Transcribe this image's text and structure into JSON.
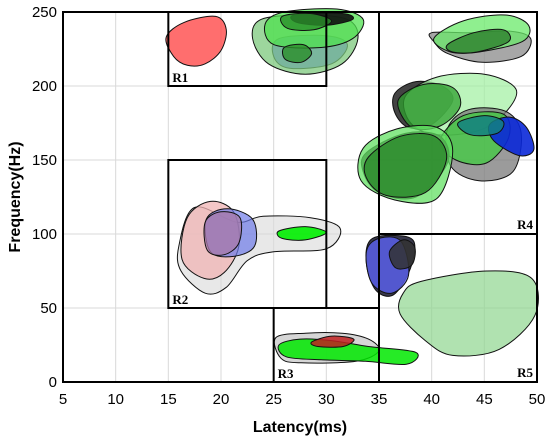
{
  "chart_data": {
    "type": "area",
    "title": "",
    "xlabel": "Latency(ms)",
    "ylabel": "Frequency(Hz)",
    "xlim": [
      5,
      50
    ],
    "ylim": [
      0,
      250
    ],
    "x_ticks": [
      5,
      10,
      15,
      20,
      25,
      30,
      35,
      40,
      45,
      50
    ],
    "y_ticks": [
      0,
      50,
      100,
      150,
      200,
      250
    ],
    "grid": true,
    "regions": [
      {
        "label": "R1",
        "x": [
          15,
          30
        ],
        "y": [
          200,
          250
        ]
      },
      {
        "label": "R2",
        "x": [
          15,
          30
        ],
        "y": [
          50,
          150
        ]
      },
      {
        "label": "R3",
        "x": [
          25,
          35
        ],
        "y": [
          0,
          50
        ]
      },
      {
        "label": "R4",
        "x": [
          35,
          50
        ],
        "y": [
          100,
          250
        ]
      },
      {
        "label": "R5",
        "x": [
          35,
          50
        ],
        "y": [
          0,
          100
        ]
      }
    ],
    "clusters": [
      {
        "color": "#ff4a4a",
        "opacity": 0.8,
        "outline": [
          [
            16.5,
            243
          ],
          [
            19.5,
            247
          ],
          [
            20.5,
            238
          ],
          [
            20,
            224
          ],
          [
            18.5,
            215
          ],
          [
            16.8,
            214
          ],
          [
            15.5,
            220
          ],
          [
            14.8,
            233
          ]
        ]
      },
      {
        "color": "#5060ff",
        "opacity": 0.8,
        "outline": [
          [
            25.5,
            232
          ],
          [
            30,
            234
          ],
          [
            32,
            228
          ],
          [
            30.5,
            215
          ],
          [
            26.5,
            212
          ],
          [
            25,
            220
          ]
        ]
      },
      {
        "color": "#7cc87c",
        "opacity": 0.75,
        "outline": [
          [
            23.8,
            245
          ],
          [
            28,
            248
          ],
          [
            32,
            245
          ],
          [
            33,
            232
          ],
          [
            31.5,
            215
          ],
          [
            28,
            208
          ],
          [
            24.5,
            215
          ],
          [
            23,
            232
          ]
        ]
      },
      {
        "color": "#4fe04f",
        "opacity": 0.75,
        "outline": [
          [
            24.2,
            242
          ],
          [
            26,
            250
          ],
          [
            31,
            252
          ],
          [
            33.5,
            245
          ],
          [
            32.5,
            232
          ],
          [
            29.5,
            226
          ],
          [
            25,
            228
          ]
        ]
      },
      {
        "color": "#101010",
        "opacity": 0.9,
        "outline": [
          [
            27,
            248
          ],
          [
            31.5,
            249
          ],
          [
            32.5,
            245
          ],
          [
            30,
            241
          ],
          [
            27.2,
            243
          ]
        ]
      },
      {
        "color": "#2a8f2a",
        "opacity": 0.8,
        "outline": [
          [
            25.8,
            247
          ],
          [
            28.5,
            249
          ],
          [
            30.5,
            244
          ],
          [
            28.8,
            238
          ],
          [
            26.3,
            239
          ]
        ]
      },
      {
        "color": "#2a8f2a",
        "opacity": 0.8,
        "outline": [
          [
            26,
            226
          ],
          [
            27.8,
            228
          ],
          [
            28.6,
            222
          ],
          [
            27.6,
            216
          ],
          [
            26.1,
            218
          ]
        ]
      },
      {
        "color": "#8a8a8a",
        "opacity": 0.75,
        "outline": [
          [
            40,
            236
          ],
          [
            43.5,
            236
          ],
          [
            47.5,
            237
          ],
          [
            49.4,
            232
          ],
          [
            48.5,
            220
          ],
          [
            44.8,
            216
          ],
          [
            41.5,
            222
          ],
          [
            40.2,
            230
          ]
        ]
      },
      {
        "color": "#6aea6a",
        "opacity": 0.75,
        "outline": [
          [
            40.2,
            232
          ],
          [
            43,
            244
          ],
          [
            47,
            248
          ],
          [
            49.2,
            241
          ],
          [
            48.6,
            230
          ],
          [
            44.5,
            223
          ],
          [
            41.8,
            223
          ]
        ]
      },
      {
        "color": "#2d7f2d",
        "opacity": 0.8,
        "outline": [
          [
            41.5,
            228
          ],
          [
            44,
            236
          ],
          [
            46.8,
            238
          ],
          [
            47.3,
            230
          ],
          [
            44.3,
            223
          ],
          [
            42,
            223
          ]
        ]
      },
      {
        "color": "#222222",
        "opacity": 0.85,
        "outline": [
          [
            36.5,
            195
          ],
          [
            38.5,
            203
          ],
          [
            41,
            200
          ],
          [
            42,
            190
          ],
          [
            40,
            174
          ],
          [
            37.8,
            172
          ],
          [
            36.5,
            182
          ]
        ]
      },
      {
        "color": "#a0f0a0",
        "opacity": 0.7,
        "outline": [
          [
            37.5,
            193
          ],
          [
            40.5,
            206
          ],
          [
            45,
            208
          ],
          [
            48,
            198
          ],
          [
            47,
            182
          ],
          [
            44.5,
            170
          ],
          [
            40.5,
            167
          ],
          [
            38,
            175
          ]
        ]
      },
      {
        "color": "#2fa02f",
        "opacity": 0.75,
        "outline": [
          [
            36.8,
            190
          ],
          [
            39.2,
            201
          ],
          [
            42,
            199
          ],
          [
            42.7,
            186
          ],
          [
            40.8,
            173
          ],
          [
            38.1,
            172
          ]
        ]
      },
      {
        "color": "#7a7a7a",
        "opacity": 0.75,
        "outline": [
          [
            41.5,
            171
          ],
          [
            43.5,
            184
          ],
          [
            47,
            183
          ],
          [
            48.5,
            168
          ],
          [
            47.7,
            142
          ],
          [
            44.5,
            136
          ],
          [
            41.8,
            146
          ]
        ]
      },
      {
        "color": "#3fcc3f",
        "opacity": 0.75,
        "outline": [
          [
            40.8,
            163
          ],
          [
            43,
            180
          ],
          [
            46.8,
            181
          ],
          [
            47.3,
            165
          ],
          [
            45.2,
            148
          ],
          [
            42.3,
            150
          ]
        ]
      },
      {
        "color": "#0a28d8",
        "opacity": 0.9,
        "outline": [
          [
            45.5,
            174
          ],
          [
            47.4,
            179
          ],
          [
            49,
            172
          ],
          [
            49.7,
            157
          ],
          [
            48.3,
            153
          ],
          [
            45.9,
            163
          ]
        ]
      },
      {
        "color": "#138080",
        "opacity": 0.85,
        "outline": [
          [
            42.5,
            175
          ],
          [
            45,
            180
          ],
          [
            46.8,
            176
          ],
          [
            46.2,
            168
          ],
          [
            43.7,
            167
          ]
        ]
      },
      {
        "color": "#1a1a1a",
        "opacity": 0.85,
        "outline": [
          [
            33.8,
            155
          ],
          [
            37.5,
            168
          ],
          [
            40.8,
            166
          ],
          [
            41.5,
            148
          ],
          [
            38.5,
            125
          ],
          [
            35,
            128
          ],
          [
            33.5,
            142
          ]
        ]
      },
      {
        "color": "#63e063",
        "opacity": 0.75,
        "outline": [
          [
            33.5,
            158
          ],
          [
            36.7,
            171
          ],
          [
            40.5,
            172
          ],
          [
            42,
            156
          ],
          [
            40.5,
            124
          ],
          [
            36.5,
            123
          ],
          [
            33.3,
            136
          ]
        ]
      },
      {
        "color": "#2c8a2c",
        "opacity": 0.8,
        "outline": [
          [
            34,
            152
          ],
          [
            37,
            166
          ],
          [
            40.3,
            166
          ],
          [
            41.4,
            150
          ],
          [
            39.4,
            128
          ],
          [
            35.7,
            126
          ],
          [
            33.8,
            138
          ]
        ]
      },
      {
        "color": "#d9d9d9",
        "opacity": 0.6,
        "outline": [
          [
            17.5,
            118
          ],
          [
            21.5,
            108
          ],
          [
            24,
            112
          ],
          [
            28.5,
            111
          ],
          [
            31.3,
            104
          ],
          [
            30,
            90
          ],
          [
            25,
            88
          ],
          [
            22.5,
            82
          ],
          [
            20.5,
            64
          ],
          [
            18.5,
            60
          ],
          [
            16.2,
            75
          ],
          [
            16,
            92
          ]
        ]
      },
      {
        "color": "#f0b4b4",
        "opacity": 0.75,
        "outline": [
          [
            16.8,
            111
          ],
          [
            19,
            122
          ],
          [
            21.2,
            115
          ],
          [
            21.7,
            92
          ],
          [
            20.3,
            74
          ],
          [
            18.4,
            70
          ],
          [
            16.3,
            83
          ]
        ]
      },
      {
        "color": "#6e7ae8",
        "opacity": 0.7,
        "outline": [
          [
            18.6,
            110
          ],
          [
            20.6,
            117
          ],
          [
            23,
            110
          ],
          [
            23.2,
            92
          ],
          [
            21.3,
            85
          ],
          [
            19,
            88
          ]
        ]
      },
      {
        "color": "#a87aa8",
        "opacity": 0.75,
        "outline": [
          [
            18.5,
            108
          ],
          [
            20,
            115
          ],
          [
            21.8,
            111
          ],
          [
            21.7,
            94
          ],
          [
            20.3,
            86
          ],
          [
            18.7,
            89
          ]
        ]
      },
      {
        "color": "#00f000",
        "opacity": 0.9,
        "outline": [
          [
            25.5,
            102
          ],
          [
            28,
            105
          ],
          [
            30,
            101
          ],
          [
            28,
            96
          ],
          [
            25.8,
            97
          ]
        ]
      },
      {
        "color": "#15152b",
        "opacity": 0.85,
        "outline": [
          [
            34.2,
            96
          ],
          [
            36.5,
            99
          ],
          [
            38.3,
            95
          ],
          [
            38,
            77
          ],
          [
            36.4,
            59
          ],
          [
            34.7,
            62
          ],
          [
            33.8,
            80
          ]
        ]
      },
      {
        "color": "#5a60f0",
        "opacity": 0.8,
        "outline": [
          [
            33.8,
            88
          ],
          [
            35,
            97
          ],
          [
            37.1,
            95
          ],
          [
            37.8,
            72
          ],
          [
            36.2,
            60
          ],
          [
            34.3,
            67
          ]
        ]
      },
      {
        "color": "#323232",
        "opacity": 0.85,
        "outline": [
          [
            36,
            88
          ],
          [
            37.3,
            96
          ],
          [
            38.4,
            91
          ],
          [
            38.1,
            79
          ],
          [
            36.6,
            77
          ]
        ]
      },
      {
        "color": "#8ed68e",
        "opacity": 0.7,
        "outline": [
          [
            37.3,
            60
          ],
          [
            39,
            68
          ],
          [
            45.2,
            75
          ],
          [
            49.5,
            70
          ],
          [
            49.8,
            45
          ],
          [
            46.4,
            22
          ],
          [
            42,
            18
          ],
          [
            39.4,
            28
          ],
          [
            37,
            46
          ]
        ]
      },
      {
        "color": "#c8c8c8",
        "opacity": 0.75,
        "outline": [
          [
            25.2,
            30
          ],
          [
            28,
            33
          ],
          [
            31.5,
            33
          ],
          [
            34,
            29
          ],
          [
            35,
            21
          ],
          [
            32.8,
            14
          ],
          [
            27.6,
            13
          ],
          [
            25.7,
            16
          ]
        ]
      },
      {
        "color": "#00e800",
        "opacity": 0.85,
        "outline": [
          [
            25.5,
            25
          ],
          [
            27.5,
            29
          ],
          [
            30.5,
            28
          ],
          [
            34,
            24
          ],
          [
            38.5,
            20
          ],
          [
            37.6,
            12
          ],
          [
            33.7,
            14
          ],
          [
            29.5,
            15
          ],
          [
            26.2,
            17
          ]
        ]
      },
      {
        "color": "#c02020",
        "opacity": 0.85,
        "outline": [
          [
            28.6,
            27
          ],
          [
            30.5,
            31
          ],
          [
            32.6,
            29
          ],
          [
            31.6,
            24
          ],
          [
            29.2,
            24
          ]
        ]
      }
    ]
  }
}
